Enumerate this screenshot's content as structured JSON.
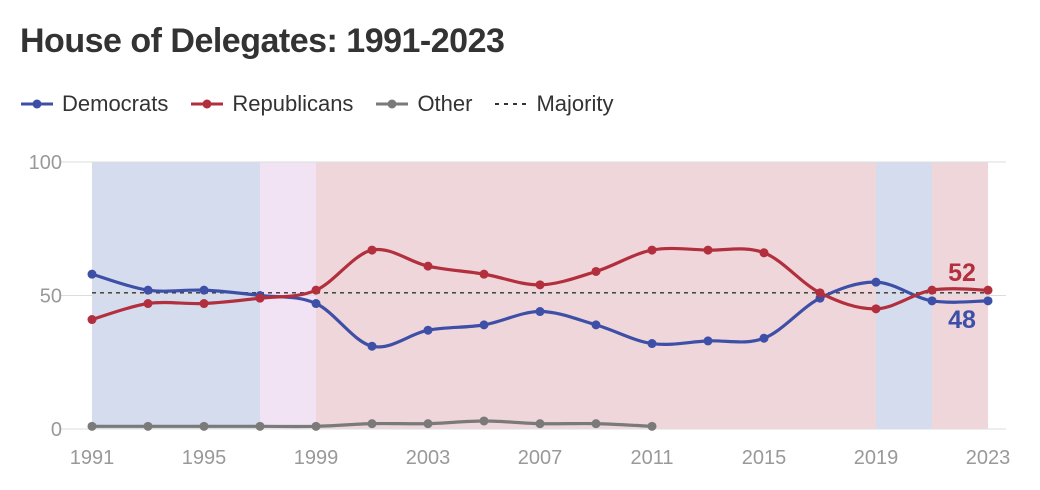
{
  "title": "House of Delegates: 1991-2023",
  "legend": {
    "democrats": "Democrats",
    "republicans": "Republicans",
    "other": "Other",
    "majority": "Majority"
  },
  "colors": {
    "democrats": "#3d4fa6",
    "republicans": "#b22f3e",
    "other": "#7a7a7a",
    "majority": "#333333",
    "dem_band": "#d5dcee",
    "rep_band": "#efd6da",
    "split_band": "#f1e3f3",
    "grid": "#dddddd",
    "axis_text": "#999999"
  },
  "chart_data": {
    "type": "line",
    "title": "House of Delegates: 1991-2023",
    "xlabel": "",
    "ylabel": "",
    "xlim": [
      1991,
      2023
    ],
    "ylim": [
      0,
      100
    ],
    "y_ticks": [
      0,
      50,
      100
    ],
    "x_ticks": [
      1991,
      1995,
      1999,
      2003,
      2007,
      2011,
      2015,
      2019,
      2023
    ],
    "grid": true,
    "legend_position": "top-left",
    "majority_line": 51,
    "control_bands": [
      {
        "party": "democrats",
        "from": 1991,
        "to": 1997
      },
      {
        "party": "split",
        "from": 1997,
        "to": 1999
      },
      {
        "party": "republicans",
        "from": 1999,
        "to": 2019
      },
      {
        "party": "democrats",
        "from": 2019,
        "to": 2021
      },
      {
        "party": "republicans",
        "from": 2021,
        "to": 2023
      }
    ],
    "series": [
      {
        "name": "Democrats",
        "key": "democrats",
        "points": [
          [
            1991,
            58
          ],
          [
            1993,
            52
          ],
          [
            1995,
            52
          ],
          [
            1997,
            50
          ],
          [
            1999,
            47
          ],
          [
            2001,
            31
          ],
          [
            2003,
            37
          ],
          [
            2005,
            39
          ],
          [
            2007,
            44
          ],
          [
            2009,
            39
          ],
          [
            2011,
            32
          ],
          [
            2013,
            33
          ],
          [
            2015,
            34
          ],
          [
            2017,
            49
          ],
          [
            2019,
            55
          ],
          [
            2021,
            48
          ],
          [
            2023,
            48
          ]
        ],
        "end_label": "48"
      },
      {
        "name": "Republicans",
        "key": "republicans",
        "points": [
          [
            1991,
            41
          ],
          [
            1993,
            47
          ],
          [
            1995,
            47
          ],
          [
            1997,
            49
          ],
          [
            1999,
            52
          ],
          [
            2001,
            67
          ],
          [
            2003,
            61
          ],
          [
            2005,
            58
          ],
          [
            2007,
            54
          ],
          [
            2009,
            59
          ],
          [
            2011,
            67
          ],
          [
            2013,
            67
          ],
          [
            2015,
            66
          ],
          [
            2017,
            51
          ],
          [
            2019,
            45
          ],
          [
            2021,
            52
          ],
          [
            2023,
            52
          ]
        ],
        "end_label": "52"
      },
      {
        "name": "Other",
        "key": "other",
        "points": [
          [
            1991,
            1
          ],
          [
            1993,
            1
          ],
          [
            1995,
            1
          ],
          [
            1997,
            1
          ],
          [
            1999,
            1
          ],
          [
            2001,
            2
          ],
          [
            2003,
            2
          ],
          [
            2005,
            3
          ],
          [
            2007,
            2
          ],
          [
            2009,
            2
          ],
          [
            2011,
            1
          ]
        ]
      }
    ]
  }
}
